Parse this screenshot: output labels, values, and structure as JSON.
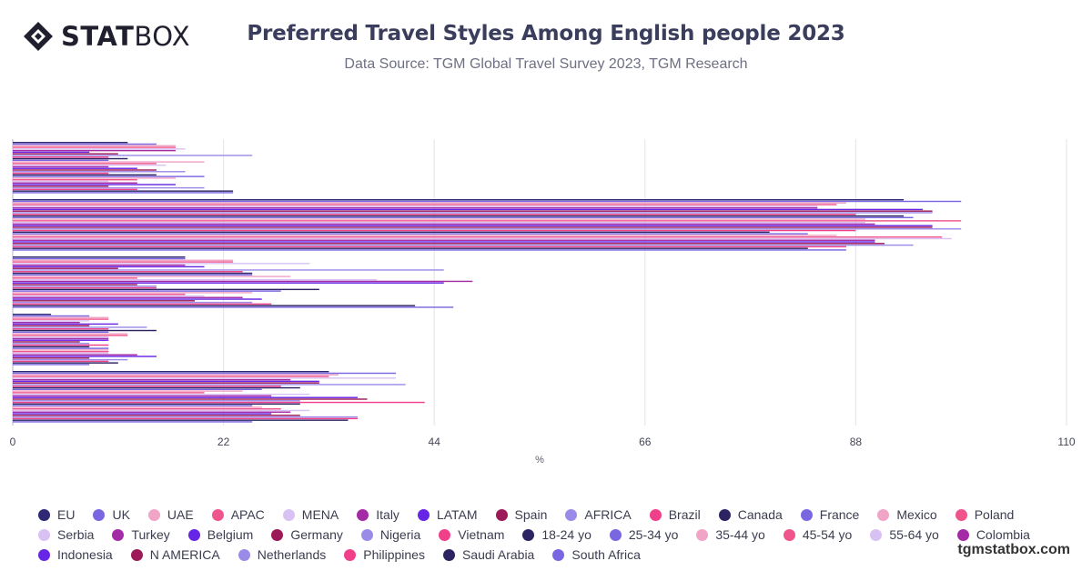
{
  "brand": {
    "strong": "STAT",
    "light": "BOX"
  },
  "header": {
    "title": "Preferred Travel Styles Among English people 2023",
    "subtitle": "Data Source: TGM Global Travel Survey 2023, TGM Research"
  },
  "footer": {
    "site": "tgmstatbox.com"
  },
  "chart_data": {
    "type": "bar",
    "orientation": "horizontal",
    "title": "Preferred Travel Styles Among English people 2023",
    "subtitle": "Data Source: TGM Global Travel Survey 2023, TGM Research",
    "xlabel": "%",
    "ylabel": "",
    "xlim": [
      0,
      110
    ],
    "xticks": [
      0,
      22,
      44,
      66,
      88,
      110
    ],
    "grid": true,
    "legend_position": "bottom",
    "categories": [
      "",
      "",
      "",
      "",
      ""
    ],
    "series": [
      {
        "name": "EU",
        "color": "#2f2875",
        "values": [
          12,
          93,
          18,
          4,
          33
        ]
      },
      {
        "name": "UK",
        "color": "#7867e0",
        "values": [
          15,
          99,
          18,
          8,
          40
        ]
      },
      {
        "name": "UAE",
        "color": "#f0a4c6",
        "values": [
          17,
          87,
          23,
          10,
          34
        ]
      },
      {
        "name": "APAC",
        "color": "#f0548c",
        "values": [
          17,
          86,
          23,
          10,
          33
        ]
      },
      {
        "name": "MENA",
        "color": "#d9c2f3",
        "values": [
          18,
          84,
          31,
          8,
          40
        ]
      },
      {
        "name": "Italy",
        "color": "#a42ba6",
        "values": [
          17,
          84,
          18,
          7,
          29
        ]
      },
      {
        "name": "LATAM",
        "color": "#6725e6",
        "values": [
          8,
          95,
          20,
          11,
          32
        ]
      },
      {
        "name": "Spain",
        "color": "#9d1a58",
        "values": [
          11,
          96,
          11,
          8,
          32
        ]
      },
      {
        "name": "AFRICA",
        "color": "#9b8be8",
        "values": [
          25,
          96,
          45,
          14,
          41
        ]
      },
      {
        "name": "Brazil",
        "color": "#f1408a",
        "values": [
          10,
          88,
          24,
          10,
          28
        ]
      },
      {
        "name": "Canada",
        "color": "#2c2462",
        "values": [
          12,
          93,
          25,
          15,
          30
        ]
      },
      {
        "name": "France",
        "color": "#7867e0",
        "values": [
          10,
          94,
          25,
          10,
          26
        ]
      },
      {
        "name": "Mexico",
        "color": "#f0a4c6",
        "values": [
          20,
          89,
          29,
          12,
          24
        ]
      },
      {
        "name": "Poland",
        "color": "#f0548c",
        "values": [
          15,
          99,
          13,
          12,
          20
        ]
      },
      {
        "name": "Serbia",
        "color": "#d9c2f3",
        "values": [
          16,
          89,
          38,
          10,
          31
        ]
      },
      {
        "name": "Turkey",
        "color": "#a42ba6",
        "values": [
          10,
          90,
          48,
          10,
          27
        ]
      },
      {
        "name": "Belgium",
        "color": "#6725e6",
        "values": [
          13,
          96,
          45,
          10,
          36
        ]
      },
      {
        "name": "Germany",
        "color": "#9d1a58",
        "values": [
          15,
          96,
          13,
          7,
          37
        ]
      },
      {
        "name": "Nigeria",
        "color": "#9b8be8",
        "values": [
          18,
          99,
          15,
          8,
          30
        ]
      },
      {
        "name": "Vietnam",
        "color": "#f1408a",
        "values": [
          10,
          88,
          15,
          10,
          43
        ]
      },
      {
        "name": "18-24 yo",
        "color": "#2c2462",
        "values": [
          15,
          79,
          32,
          8,
          30
        ]
      },
      {
        "name": "25-34 yo",
        "color": "#7867e0",
        "values": [
          20,
          83,
          28,
          10,
          25
        ]
      },
      {
        "name": "35-44 yo",
        "color": "#f0a4c6",
        "values": [
          17,
          86,
          25,
          10,
          26
        ]
      },
      {
        "name": "45-54 yo",
        "color": "#f0548c",
        "values": [
          13,
          97,
          18,
          10,
          28
        ]
      },
      {
        "name": "55-64 yo",
        "color": "#d9c2f3",
        "values": [
          10,
          98,
          20,
          10,
          31
        ]
      },
      {
        "name": "Colombia",
        "color": "#a42ba6",
        "values": [
          13,
          90,
          24,
          13,
          29
        ]
      },
      {
        "name": "Indonesia",
        "color": "#6725e6",
        "values": [
          17,
          90,
          26,
          15,
          27
        ]
      },
      {
        "name": "N AMERICA",
        "color": "#9d1a58",
        "values": [
          10,
          91,
          19,
          8,
          30
        ]
      },
      {
        "name": "Netherlands",
        "color": "#9b8be8",
        "values": [
          20,
          94,
          25,
          12,
          36
        ]
      },
      {
        "name": "Philippines",
        "color": "#f1408a",
        "values": [
          13,
          87,
          27,
          10,
          36
        ]
      },
      {
        "name": "Saudi Arabia",
        "color": "#2c2462",
        "values": [
          23,
          83,
          42,
          11,
          35
        ]
      },
      {
        "name": "South Africa",
        "color": "#7867e0",
        "values": [
          23,
          87,
          46,
          8,
          25
        ]
      }
    ]
  }
}
